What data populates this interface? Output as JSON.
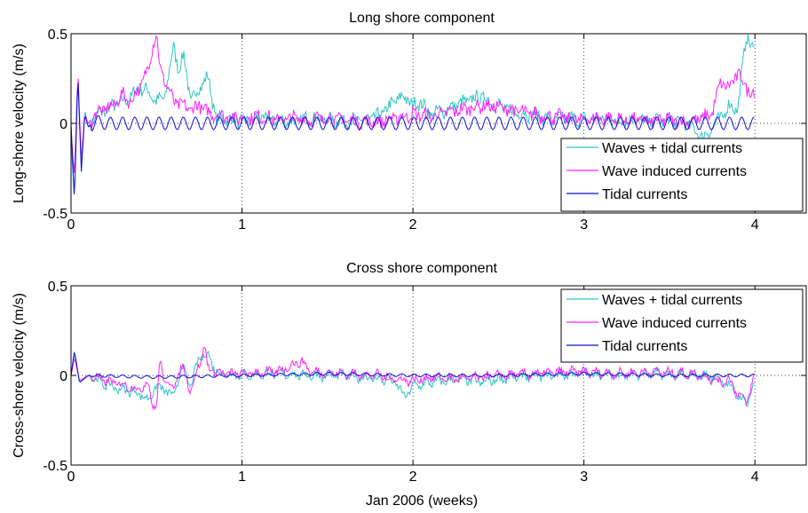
{
  "figure": {
    "xlabel": "Jan 2006 (weeks)"
  },
  "chart_data": [
    {
      "type": "line",
      "title": "Long shore component",
      "xlabel": "",
      "ylabel": "Long-shore velocity (m/s)",
      "xlim": [
        0,
        4.3
      ],
      "ylim": [
        -0.5,
        0.5
      ],
      "xticks": [
        "0",
        "1",
        "2",
        "3",
        "4"
      ],
      "yticks": [
        "-0.5",
        "0",
        "0.5"
      ],
      "grid": "x-dotted, y=0 dotted",
      "legend": "lower-right",
      "series": [
        {
          "name": "Waves + tidal currents",
          "color": "#2ec4c4",
          "x": [
            0,
            0.02,
            0.04,
            0.06,
            0.08,
            0.1,
            0.15,
            0.2,
            0.25,
            0.3,
            0.35,
            0.4,
            0.45,
            0.5,
            0.55,
            0.6,
            0.63,
            0.66,
            0.7,
            0.75,
            0.8,
            0.85,
            0.9,
            1.0,
            1.1,
            1.2,
            1.3,
            1.4,
            1.5,
            1.6,
            1.7,
            1.8,
            1.9,
            1.95,
            2.0,
            2.05,
            2.1,
            2.2,
            2.3,
            2.4,
            2.5,
            2.6,
            2.7,
            2.8,
            2.9,
            3.0,
            3.1,
            3.2,
            3.3,
            3.4,
            3.5,
            3.6,
            3.7,
            3.8,
            3.85,
            3.9,
            3.95,
            4.0
          ],
          "y": [
            -0.1,
            -0.42,
            0.26,
            -0.25,
            0.08,
            -0.02,
            0.05,
            0.07,
            0.1,
            0.12,
            0.15,
            0.2,
            0.18,
            0.12,
            0.15,
            0.43,
            0.3,
            0.38,
            0.12,
            0.2,
            0.26,
            0.02,
            0.03,
            0.01,
            0.03,
            0.02,
            0.01,
            0.03,
            0.02,
            0.01,
            0.02,
            0.04,
            0.13,
            0.15,
            0.1,
            0.12,
            0.05,
            0.08,
            0.12,
            0.15,
            0.1,
            0.06,
            0.05,
            0.02,
            0.03,
            0.02,
            0.03,
            0.01,
            0.02,
            0.01,
            0.02,
            0.0,
            -0.08,
            0.03,
            0.1,
            0.08,
            0.5,
            0.38
          ]
        },
        {
          "name": "Wave induced currents",
          "color": "#ff20ff",
          "x": [
            0,
            0.02,
            0.04,
            0.06,
            0.08,
            0.1,
            0.15,
            0.2,
            0.25,
            0.3,
            0.35,
            0.4,
            0.45,
            0.48,
            0.5,
            0.52,
            0.55,
            0.6,
            0.65,
            0.7,
            0.75,
            0.8,
            0.9,
            1.0,
            1.1,
            1.2,
            1.3,
            1.4,
            1.5,
            1.6,
            1.7,
            1.8,
            1.9,
            2.0,
            2.1,
            2.2,
            2.3,
            2.4,
            2.5,
            2.6,
            2.7,
            2.8,
            2.9,
            3.0,
            3.1,
            3.2,
            3.3,
            3.4,
            3.5,
            3.6,
            3.7,
            3.75,
            3.8,
            3.85,
            3.9,
            3.95,
            4.0
          ],
          "y": [
            -0.05,
            -0.3,
            0.3,
            -0.2,
            0.05,
            0.0,
            0.06,
            0.08,
            0.1,
            0.16,
            0.12,
            0.2,
            0.3,
            0.45,
            0.5,
            0.3,
            0.24,
            0.12,
            0.1,
            0.08,
            0.1,
            0.06,
            0.04,
            0.03,
            0.04,
            0.02,
            0.03,
            0.02,
            0.03,
            0.02,
            0.01,
            0.01,
            0.03,
            0.05,
            0.04,
            0.06,
            0.08,
            0.1,
            0.09,
            0.07,
            0.05,
            0.04,
            0.03,
            0.02,
            0.03,
            0.02,
            0.02,
            0.01,
            0.02,
            0.01,
            0.03,
            0.06,
            0.23,
            0.2,
            0.28,
            0.2,
            0.16
          ]
        },
        {
          "name": "Tidal currents",
          "color": "#1010d0",
          "x": [
            0,
            0.02,
            0.04,
            0.06,
            0.08,
            0.1,
            0.15,
            0.2,
            0.3,
            0.5,
            1.0,
            1.5,
            2.0,
            2.5,
            3.0,
            3.5,
            4.0
          ],
          "y": [
            0.0,
            -0.44,
            0.28,
            -0.27,
            0.05,
            -0.02,
            0.01,
            0.0,
            0.0,
            0.0,
            0.0,
            0.0,
            0.0,
            0.0,
            0.0,
            0.0,
            0.0
          ],
          "oscillation_amplitude": 0.035,
          "oscillation_period": 0.071
        }
      ]
    },
    {
      "type": "line",
      "title": "Cross shore component",
      "xlabel": "Jan 2006 (weeks)",
      "ylabel": "Cross-shore velocity (m/s)",
      "xlim": [
        0,
        4.3
      ],
      "ylim": [
        -0.5,
        0.5
      ],
      "xticks": [
        "0",
        "1",
        "2",
        "3",
        "4"
      ],
      "yticks": [
        "-0.5",
        "0",
        "0.5"
      ],
      "grid": "x-dotted, y=0 dotted",
      "legend": "upper-right",
      "series": [
        {
          "name": "Waves + tidal currents",
          "color": "#2ec4c4",
          "x": [
            0,
            0.02,
            0.05,
            0.1,
            0.2,
            0.3,
            0.4,
            0.45,
            0.5,
            0.55,
            0.6,
            0.65,
            0.7,
            0.75,
            0.8,
            0.85,
            0.9,
            1.0,
            1.2,
            1.4,
            1.6,
            1.8,
            1.9,
            1.95,
            2.0,
            2.05,
            2.1,
            2.2,
            2.3,
            2.4,
            2.5,
            2.6,
            2.8,
            3.0,
            3.2,
            3.4,
            3.6,
            3.7,
            3.8,
            3.85,
            3.9,
            3.95,
            4.0
          ],
          "y": [
            0.0,
            0.12,
            -0.04,
            0.0,
            -0.05,
            -0.08,
            -0.1,
            -0.14,
            -0.06,
            -0.08,
            -0.12,
            0.05,
            -0.06,
            0.1,
            0.12,
            0.02,
            0.01,
            0.0,
            0.01,
            0.0,
            0.0,
            -0.02,
            -0.04,
            -0.12,
            -0.06,
            -0.05,
            -0.04,
            -0.03,
            -0.02,
            -0.04,
            -0.02,
            -0.01,
            0.0,
            0.01,
            0.0,
            0.01,
            0.0,
            0.0,
            -0.02,
            -0.06,
            -0.12,
            -0.15,
            -0.05
          ]
        },
        {
          "name": "Wave induced currents",
          "color": "#ff20ff",
          "x": [
            0,
            0.02,
            0.05,
            0.1,
            0.2,
            0.3,
            0.4,
            0.45,
            0.48,
            0.5,
            0.52,
            0.55,
            0.6,
            0.65,
            0.7,
            0.75,
            0.78,
            0.8,
            0.85,
            0.9,
            1.0,
            1.2,
            1.35,
            1.4,
            1.6,
            1.8,
            1.9,
            2.0,
            2.1,
            2.3,
            2.5,
            2.7,
            2.9,
            3.0,
            3.2,
            3.4,
            3.6,
            3.7,
            3.8,
            3.85,
            3.9,
            3.95,
            4.0
          ],
          "y": [
            0.0,
            0.1,
            -0.03,
            0.0,
            -0.03,
            -0.05,
            -0.08,
            -0.04,
            -0.17,
            -0.18,
            0.08,
            -0.04,
            -0.06,
            0.05,
            -0.08,
            0.06,
            0.17,
            0.04,
            0.02,
            0.01,
            0.01,
            0.02,
            0.08,
            0.02,
            0.01,
            0.0,
            -0.02,
            -0.03,
            -0.01,
            -0.02,
            0.0,
            0.01,
            0.02,
            0.02,
            0.01,
            0.02,
            0.01,
            0.0,
            -0.04,
            -0.02,
            -0.1,
            -0.15,
            0.0
          ]
        },
        {
          "name": "Tidal currents",
          "color": "#1010d0",
          "x": [
            0,
            0.02,
            0.05,
            0.1,
            0.5,
            1.0,
            1.5,
            2.0,
            2.5,
            3.0,
            3.5,
            4.0
          ],
          "y": [
            0.0,
            0.14,
            -0.04,
            0.0,
            -0.01,
            0.0,
            0.01,
            0.0,
            0.0,
            0.01,
            0.0,
            0.0
          ],
          "oscillation_amplitude": 0.008,
          "oscillation_period": 0.071
        }
      ]
    }
  ]
}
